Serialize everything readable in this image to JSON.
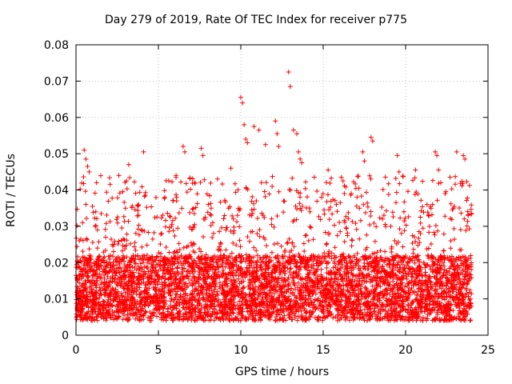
{
  "chart_data": {
    "type": "scatter",
    "title": "Day 279 of 2019, Rate Of TEC Index for receiver p775",
    "xlabel": "GPS time / hours",
    "ylabel": "ROTI / TECUs",
    "xlim": [
      0,
      25
    ],
    "ylim": [
      0,
      0.08
    ],
    "xticks": [
      0,
      5,
      10,
      15,
      20,
      25
    ],
    "yticks": [
      0,
      0.01,
      0.02,
      0.03,
      0.04,
      0.05,
      0.06,
      0.07,
      0.08
    ],
    "xtick_labels": [
      "0",
      "5",
      "10",
      "15",
      "20",
      "25"
    ],
    "ytick_labels": [
      "0",
      "0.01",
      "0.02",
      "0.03",
      "0.04",
      "0.05",
      "0.06",
      "0.07",
      "0.08"
    ],
    "grid": true,
    "marker": "+",
    "series": [
      {
        "name": "ROTI",
        "color": "#ff0000",
        "x": [
          0.5,
          0.6,
          0.7,
          0.8,
          1.0,
          1.2,
          2.6,
          3.2,
          4.1,
          4.2,
          6.5,
          6.6,
          7.6,
          7.7,
          9.4,
          10.0,
          10.1,
          10.2,
          10.3,
          10.4,
          10.8,
          11.1,
          11.5,
          12.1,
          12.2,
          12.3,
          12.9,
          13.0,
          13.2,
          13.4,
          13.5,
          13.6,
          13.7,
          15.3,
          16.1,
          16.2,
          17.4,
          17.5,
          17.9,
          18.0,
          19.5,
          19.6,
          20.6,
          21.8,
          21.9,
          22.0,
          23.1,
          23.5,
          23.6,
          0.2,
          0.4,
          1.3,
          1.8,
          2.2,
          3.0,
          3.8,
          5.2,
          5.8,
          6.1,
          7.2,
          8.3,
          9.1,
          9.8,
          11.9,
          12.6,
          14.2,
          14.9,
          15.8,
          16.7,
          17.2,
          18.6,
          19.1,
          19.9,
          20.9,
          21.3,
          22.4,
          22.9,
          23.8
        ],
        "values": [
          0.051,
          0.0485,
          0.0465,
          0.045,
          0.0355,
          0.034,
          0.044,
          0.047,
          0.0505,
          0.0385,
          0.052,
          0.0505,
          0.0515,
          0.0495,
          0.046,
          0.0655,
          0.064,
          0.058,
          0.054,
          0.053,
          0.0575,
          0.0565,
          0.0525,
          0.059,
          0.0555,
          0.052,
          0.0725,
          0.0685,
          0.0565,
          0.0555,
          0.0505,
          0.0485,
          0.0475,
          0.0455,
          0.0435,
          0.0425,
          0.0505,
          0.048,
          0.0545,
          0.0535,
          0.0495,
          0.045,
          0.0455,
          0.0505,
          0.0495,
          0.0455,
          0.0505,
          0.0495,
          0.0485,
          0.026,
          0.031,
          0.029,
          0.027,
          0.025,
          0.035,
          0.033,
          0.028,
          0.03,
          0.038,
          0.042,
          0.031,
          0.029,
          0.033,
          0.041,
          0.037,
          0.034,
          0.038,
          0.036,
          0.039,
          0.035,
          0.032,
          0.03,
          0.034,
          0.028,
          0.036,
          0.039,
          0.035,
          0.033
        ],
        "bulk_band": {
          "x_range": [
            0,
            24
          ],
          "typical_min": 0.004,
          "typical_max": 0.022,
          "spike_max": 0.04
        }
      }
    ]
  }
}
